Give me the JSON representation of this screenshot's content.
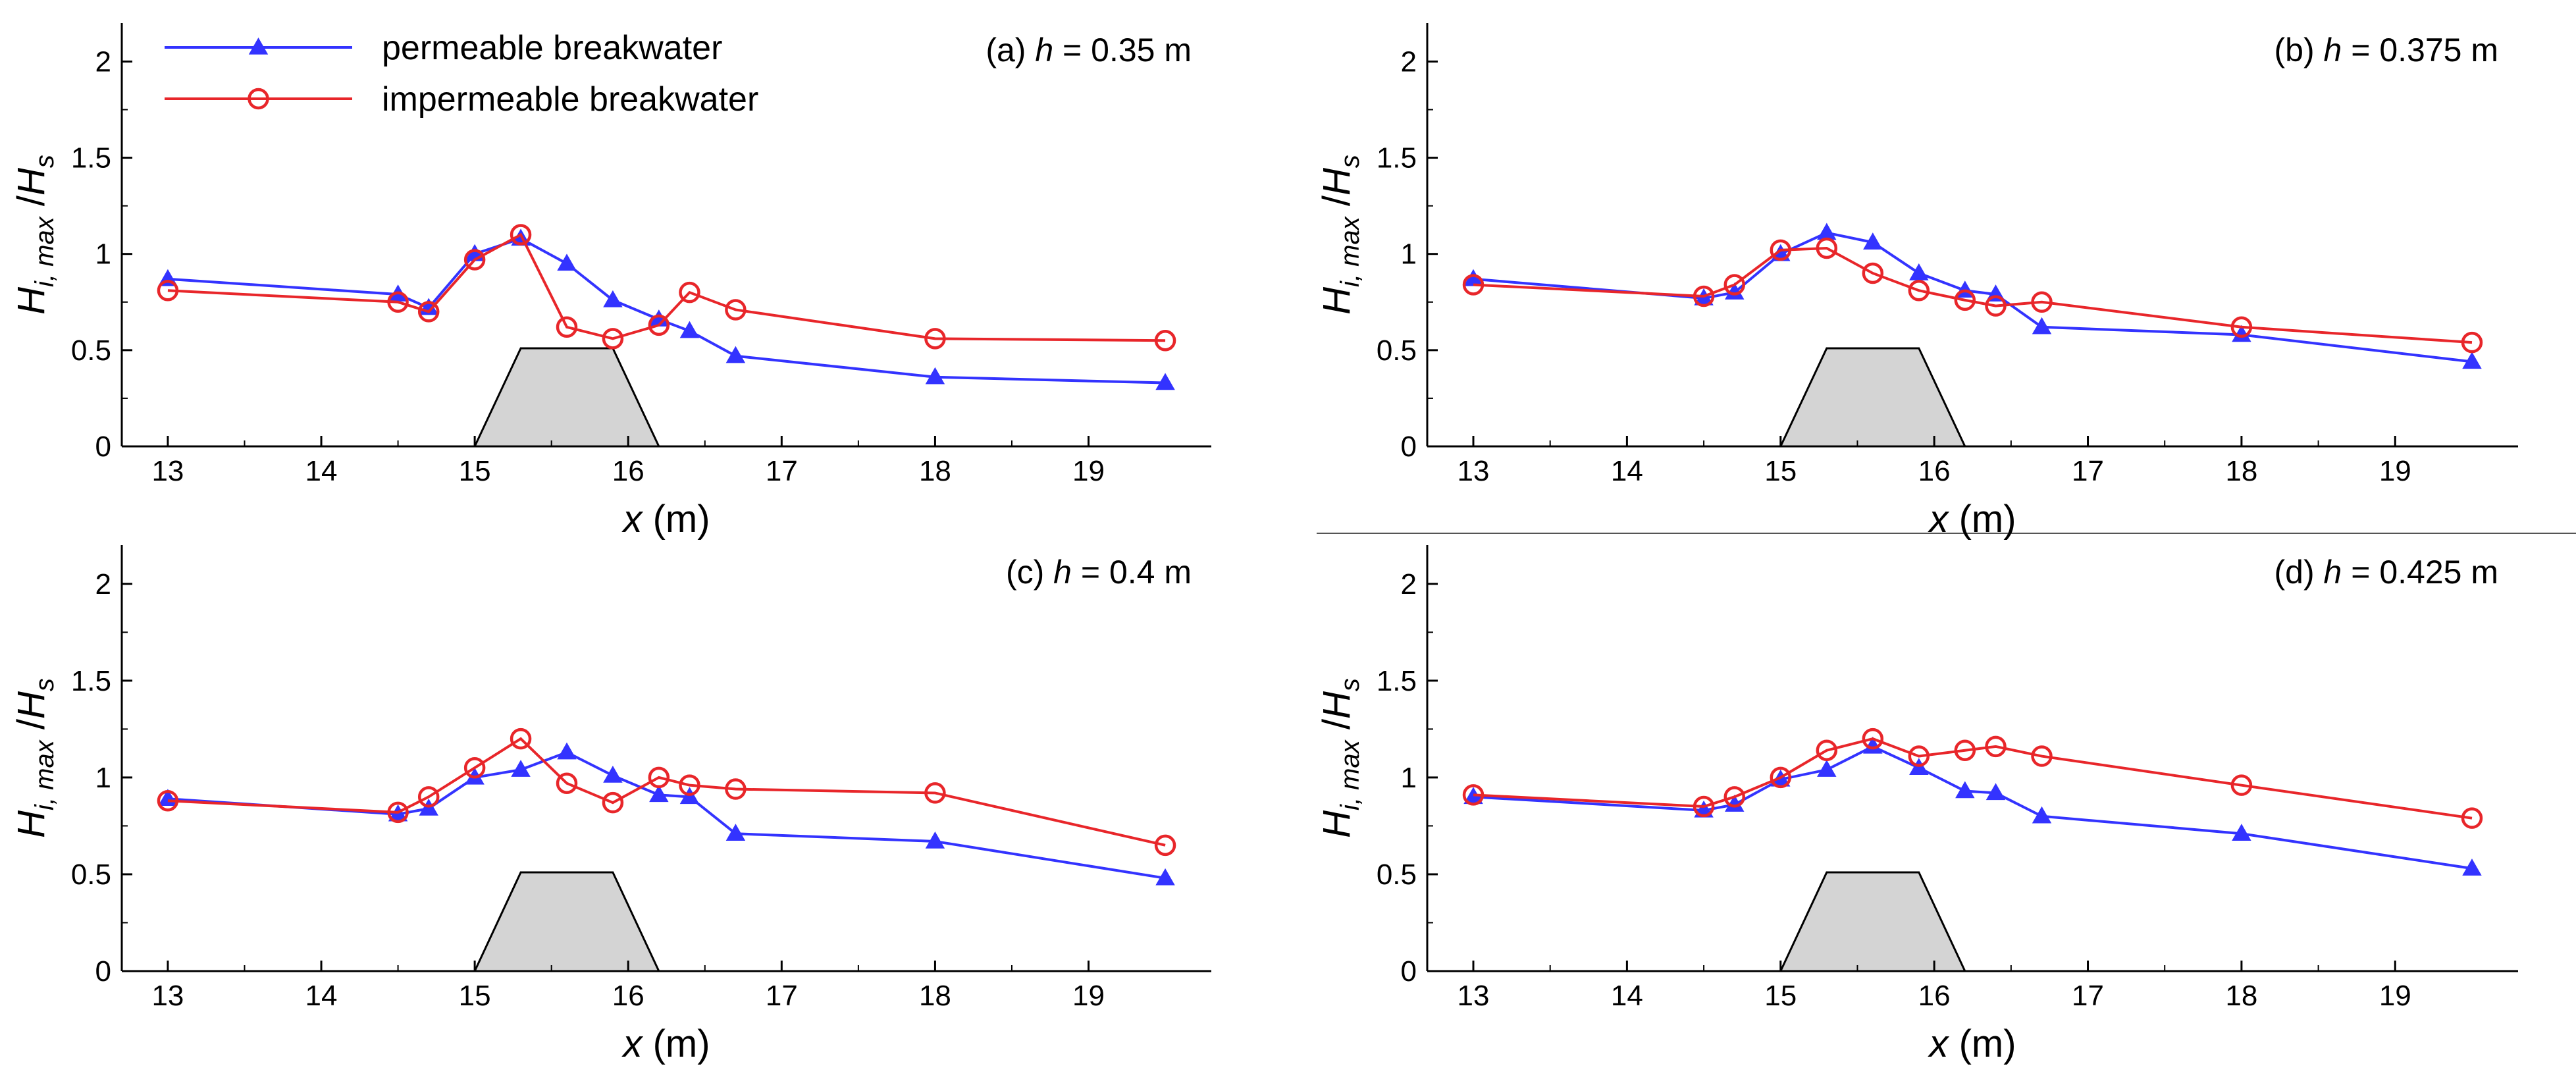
{
  "chart_data": [
    {
      "type": "line",
      "title_prefix": "(a) ",
      "title_var": "h",
      "title_suffix": " = 0.35 m",
      "xlabel_var": "x",
      "xlabel_unit": " (m)",
      "ylabel_main": "H",
      "ylabel_sub": "i, max",
      "ylabel_sep": " /",
      "ylabel_den": "H",
      "ylabel_den_sub": "s",
      "xlim": [
        12.7,
        19.8
      ],
      "ylim": [
        0,
        2.2
      ],
      "xticks": [
        "13",
        "14",
        "15",
        "16",
        "17",
        "18",
        "19"
      ],
      "yticks": [
        "0",
        "0.5",
        "1",
        "1.5",
        "2"
      ],
      "breakwater": {
        "x": [
          15.0,
          15.3,
          15.9,
          16.2
        ],
        "y": [
          0,
          0.51,
          0.51,
          0
        ]
      },
      "series": [
        {
          "name": "permeable breakwater",
          "color": "#3333ff",
          "marker": "triangle",
          "x": [
            13,
            14.5,
            14.7,
            15,
            15.3,
            15.6,
            15.9,
            16.2,
            16.4,
            16.7,
            18,
            19.5
          ],
          "y": [
            0.87,
            0.79,
            0.72,
            1.0,
            1.08,
            0.95,
            0.76,
            0.66,
            0.6,
            0.47,
            0.36,
            0.33
          ]
        },
        {
          "name": "impermeable breakwater",
          "color": "#e8262a",
          "marker": "circle",
          "x": [
            13,
            14.5,
            14.7,
            15,
            15.3,
            15.6,
            15.9,
            16.2,
            16.4,
            16.7,
            18,
            19.5
          ],
          "y": [
            0.81,
            0.75,
            0.7,
            0.97,
            1.1,
            0.62,
            0.56,
            0.63,
            0.8,
            0.71,
            0.56,
            0.55
          ]
        }
      ]
    },
    {
      "type": "line",
      "title_prefix": "(b) ",
      "title_var": "h",
      "title_suffix": " = 0.375 m",
      "xlabel_var": "x",
      "xlabel_unit": " (m)",
      "ylabel_main": "H",
      "ylabel_sub": "i, max",
      "ylabel_sep": " /",
      "ylabel_den": "H",
      "ylabel_den_sub": "s",
      "xlim": [
        12.7,
        19.8
      ],
      "ylim": [
        0,
        2.2
      ],
      "xticks": [
        "13",
        "14",
        "15",
        "16",
        "17",
        "18",
        "19"
      ],
      "yticks": [
        "0",
        "0.5",
        "1",
        "1.5",
        "2"
      ],
      "breakwater": {
        "x": [
          15.0,
          15.3,
          15.9,
          16.2
        ],
        "y": [
          0,
          0.51,
          0.51,
          0
        ]
      },
      "series": [
        {
          "name": "permeable breakwater",
          "color": "#3333ff",
          "marker": "triangle",
          "x": [
            13,
            14.5,
            14.7,
            15,
            15.3,
            15.6,
            15.9,
            16.2,
            16.4,
            16.7,
            18,
            19.5
          ],
          "y": [
            0.87,
            0.77,
            0.8,
            1.0,
            1.11,
            1.06,
            0.9,
            0.81,
            0.79,
            0.62,
            0.58,
            0.44
          ]
        },
        {
          "name": "impermeable breakwater",
          "color": "#e8262a",
          "marker": "circle",
          "x": [
            13,
            14.5,
            14.7,
            15,
            15.3,
            15.6,
            15.9,
            16.2,
            16.4,
            16.7,
            18,
            19.5
          ],
          "y": [
            0.84,
            0.78,
            0.84,
            1.02,
            1.03,
            0.9,
            0.81,
            0.76,
            0.73,
            0.75,
            0.62,
            0.54
          ]
        }
      ]
    },
    {
      "type": "line",
      "title_prefix": "(c) ",
      "title_var": "h",
      "title_suffix": " = 0.4 m",
      "xlabel_var": "x",
      "xlabel_unit": " (m)",
      "ylabel_main": "H",
      "ylabel_sub": "i, max",
      "ylabel_sep": " /",
      "ylabel_den": "H",
      "ylabel_den_sub": "s",
      "xlim": [
        12.7,
        19.8
      ],
      "ylim": [
        0,
        2.2
      ],
      "xticks": [
        "13",
        "14",
        "15",
        "16",
        "17",
        "18",
        "19"
      ],
      "yticks": [
        "0",
        "0.5",
        "1",
        "1.5",
        "2"
      ],
      "breakwater": {
        "x": [
          15.0,
          15.3,
          15.9,
          16.2
        ],
        "y": [
          0,
          0.51,
          0.51,
          0
        ]
      },
      "series": [
        {
          "name": "permeable breakwater",
          "color": "#3333ff",
          "marker": "triangle",
          "x": [
            13,
            14.5,
            14.7,
            15,
            15.3,
            15.6,
            15.9,
            16.2,
            16.4,
            16.7,
            18,
            19.5
          ],
          "y": [
            0.89,
            0.81,
            0.84,
            1.0,
            1.04,
            1.13,
            1.01,
            0.91,
            0.9,
            0.71,
            0.67,
            0.48
          ]
        },
        {
          "name": "impermeable breakwater",
          "color": "#e8262a",
          "marker": "circle",
          "x": [
            13,
            14.5,
            14.7,
            15,
            15.3,
            15.6,
            15.9,
            16.2,
            16.4,
            16.7,
            18,
            19.5
          ],
          "y": [
            0.88,
            0.82,
            0.9,
            1.05,
            1.2,
            0.97,
            0.87,
            1.0,
            0.96,
            0.94,
            0.92,
            0.65
          ]
        }
      ]
    },
    {
      "type": "line",
      "title_prefix": "(d) ",
      "title_var": "h",
      "title_suffix": " = 0.425 m",
      "xlabel_var": "x",
      "xlabel_unit": " (m)",
      "ylabel_main": "H",
      "ylabel_sub": "i, max",
      "ylabel_sep": " /",
      "ylabel_den": "H",
      "ylabel_den_sub": "s",
      "xlim": [
        12.7,
        19.8
      ],
      "ylim": [
        0,
        2.2
      ],
      "xticks": [
        "13",
        "14",
        "15",
        "16",
        "17",
        "18",
        "19"
      ],
      "yticks": [
        "0",
        "0.5",
        "1",
        "1.5",
        "2"
      ],
      "breakwater": {
        "x": [
          15.0,
          15.3,
          15.9,
          16.2
        ],
        "y": [
          0,
          0.51,
          0.51,
          0
        ]
      },
      "series": [
        {
          "name": "permeable breakwater",
          "color": "#3333ff",
          "marker": "triangle",
          "x": [
            13,
            14.5,
            14.7,
            15,
            15.3,
            15.6,
            15.9,
            16.2,
            16.4,
            16.7,
            18,
            19.5
          ],
          "y": [
            0.9,
            0.83,
            0.86,
            0.99,
            1.04,
            1.16,
            1.05,
            0.93,
            0.92,
            0.8,
            0.71,
            0.53
          ]
        },
        {
          "name": "impermeable breakwater",
          "color": "#e8262a",
          "marker": "circle",
          "x": [
            13,
            14.5,
            14.7,
            15,
            15.3,
            15.6,
            15.9,
            16.2,
            16.4,
            16.7,
            18,
            19.5
          ],
          "y": [
            0.91,
            0.85,
            0.9,
            1.0,
            1.14,
            1.2,
            1.11,
            1.14,
            1.16,
            1.11,
            0.96,
            0.79
          ]
        }
      ]
    }
  ],
  "legend": {
    "placement": "top-left of panel (a)",
    "entries": [
      {
        "label": "permeable breakwater",
        "color": "#3333ff",
        "marker": "triangle"
      },
      {
        "label": "impermeable breakwater",
        "color": "#e8262a",
        "marker": "circle"
      }
    ]
  },
  "colors": {
    "breakwater_fill": "#d4d4d4",
    "axis": "#000000",
    "divider": "#555555"
  }
}
